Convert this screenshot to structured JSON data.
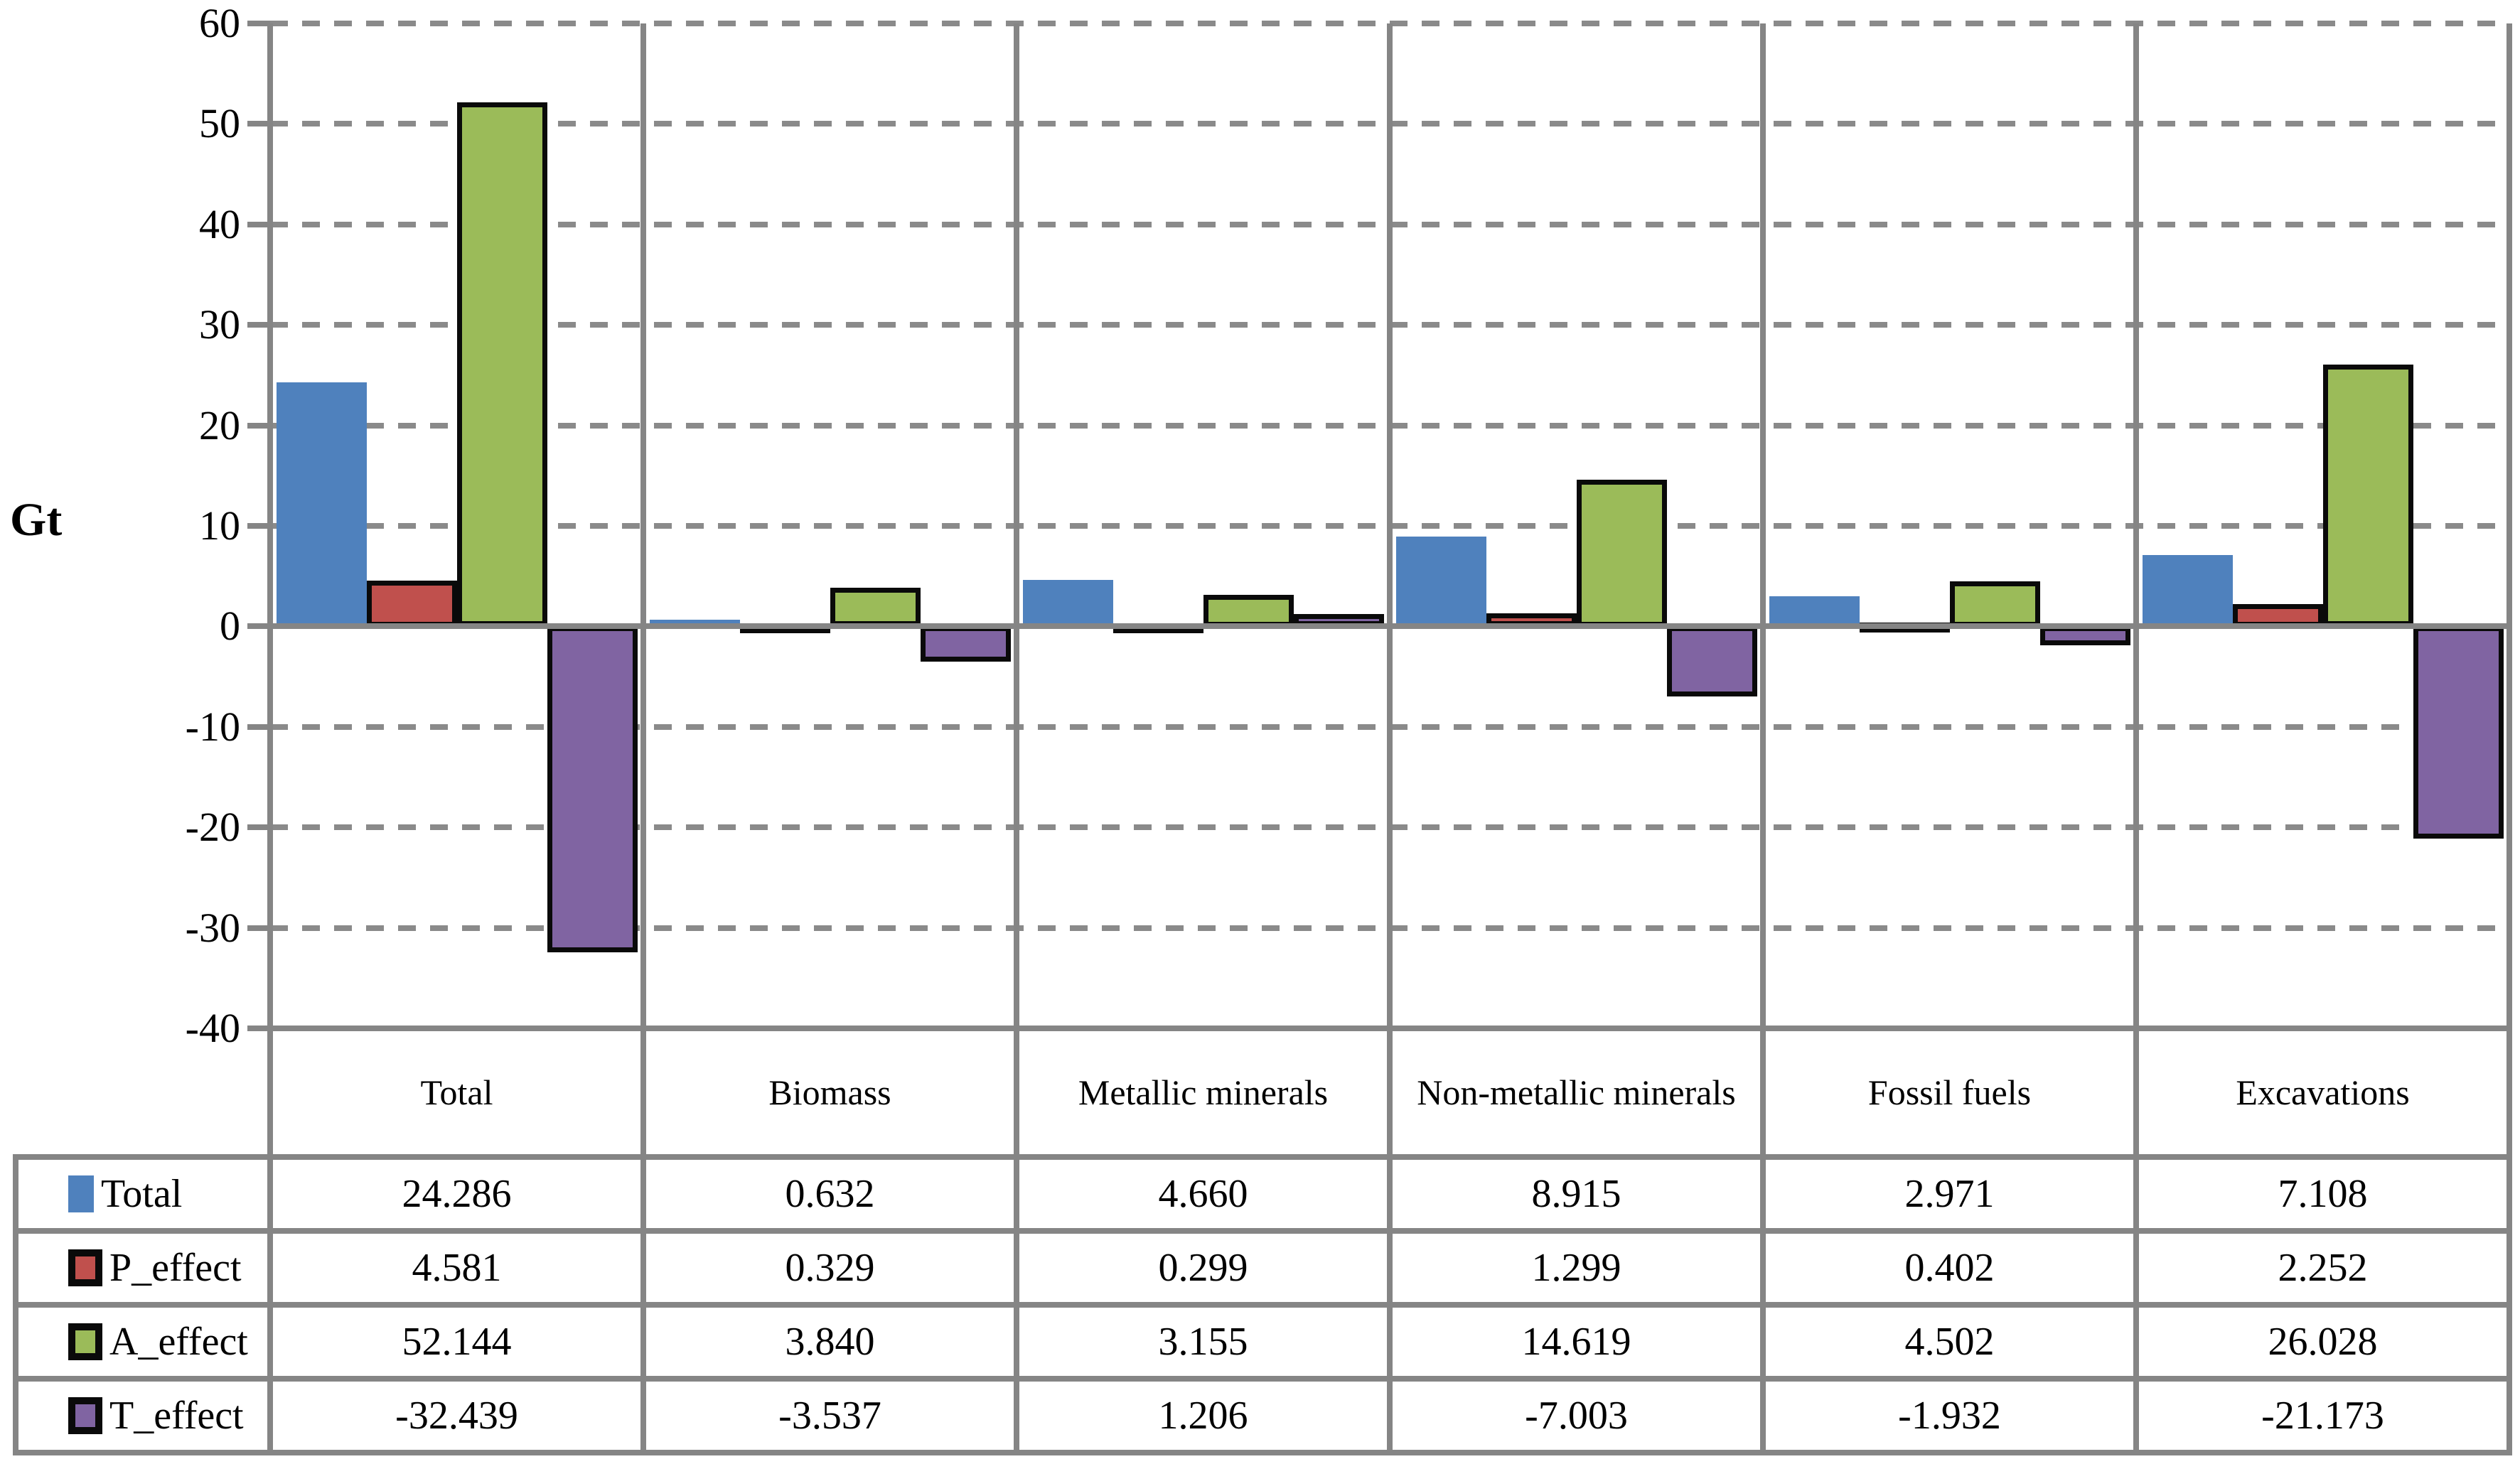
{
  "chart_data": {
    "type": "bar",
    "title": "",
    "ylabel": "Gt",
    "xlabel": "",
    "ylim": [
      -40,
      60
    ],
    "y_ticks": [
      60,
      50,
      40,
      30,
      20,
      10,
      0,
      -10,
      -20,
      -30,
      -40
    ],
    "grid": "horizontal dashed gridlines, solid zero line, solid vertical category separators",
    "legend_position": "left column of data table below chart",
    "colors": {
      "axis_gray": "#858585",
      "bar_border_black": "#0a0a0a",
      "series_blue": "#4F81BD",
      "series_red": "#C0504D",
      "series_green": "#9BBB59",
      "series_purple": "#8064A2"
    },
    "number_format": "0.000",
    "categories": [
      "Total",
      "Biomass",
      "Metallic minerals",
      "Non-metallic minerals",
      "Fossil fuels",
      "Excavations"
    ],
    "series": [
      {
        "name": "Total",
        "color": "#4F81BD",
        "border": false,
        "values": [
          24.286,
          0.632,
          4.66,
          8.915,
          2.971,
          7.108
        ]
      },
      {
        "name": "P_effect",
        "color": "#C0504D",
        "border": true,
        "values": [
          4.581,
          0.329,
          0.299,
          1.299,
          0.402,
          2.252
        ]
      },
      {
        "name": "A_effect",
        "color": "#9BBB59",
        "border": true,
        "values": [
          52.144,
          3.84,
          3.155,
          14.619,
          4.502,
          26.028
        ]
      },
      {
        "name": "T_effect",
        "color": "#8064A2",
        "border": true,
        "values": [
          -32.439,
          -3.537,
          1.206,
          -7.003,
          -1.932,
          -21.173
        ]
      }
    ]
  }
}
